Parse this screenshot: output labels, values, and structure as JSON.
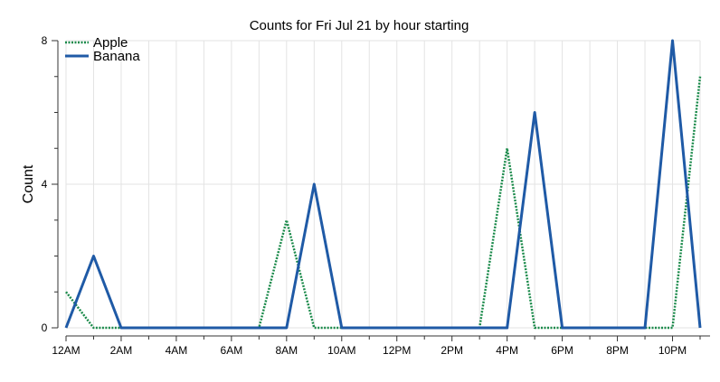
{
  "chart_data": {
    "type": "line",
    "title": "Counts for Fri Jul 21 by hour starting",
    "xlabel": "",
    "ylabel": "Count",
    "x": [
      0,
      1,
      2,
      3,
      4,
      5,
      6,
      7,
      8,
      9,
      10,
      11,
      12,
      13,
      14,
      15,
      16,
      17,
      18,
      19,
      20,
      21,
      22,
      23
    ],
    "xlim": [
      0,
      23
    ],
    "ylim": [
      0,
      8
    ],
    "x_ticks": [
      {
        "x": 0,
        "label": "12AM"
      },
      {
        "x": 2,
        "label": "2AM"
      },
      {
        "x": 4,
        "label": "4AM"
      },
      {
        "x": 6,
        "label": "6AM"
      },
      {
        "x": 8,
        "label": "8AM"
      },
      {
        "x": 10,
        "label": "10AM"
      },
      {
        "x": 12,
        "label": "12PM"
      },
      {
        "x": 14,
        "label": "2PM"
      },
      {
        "x": 16,
        "label": "4PM"
      },
      {
        "x": 18,
        "label": "6PM"
      },
      {
        "x": 20,
        "label": "8PM"
      },
      {
        "x": 22,
        "label": "10PM"
      }
    ],
    "y_ticks": [
      {
        "y": 0,
        "label": "0"
      },
      {
        "y": 4,
        "label": "4"
      },
      {
        "y": 8,
        "label": "8"
      }
    ],
    "grid": true,
    "legend_position": "top-left",
    "series": [
      {
        "name": "Apple",
        "color": "#1a8a4a",
        "style": "dotted",
        "values": [
          1,
          0,
          0,
          0,
          0,
          0,
          0,
          0,
          3,
          0,
          0,
          0,
          0,
          0,
          0,
          0,
          5,
          0,
          0,
          0,
          0,
          0,
          0,
          7
        ]
      },
      {
        "name": "Banana",
        "color": "#1f5aa6",
        "style": "solid",
        "values": [
          0,
          2,
          0,
          0,
          0,
          0,
          0,
          0,
          0,
          4,
          0,
          0,
          0,
          0,
          0,
          0,
          0,
          6,
          0,
          0,
          0,
          0,
          8,
          0
        ]
      }
    ]
  }
}
